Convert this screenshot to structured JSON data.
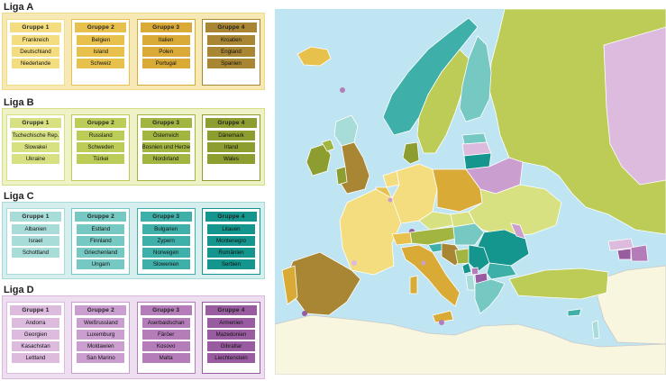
{
  "colors": {
    "A_light": "#f6e9b6",
    "A_border": "#efd98a",
    "A_g1": "#f4dd7e",
    "A_g2": "#e8c14d",
    "A_g3": "#d9aa36",
    "A_g4": "#a98633",
    "B_light": "#eef2c6",
    "B_border": "#d3df86",
    "B_g1": "#d7e181",
    "B_g2": "#bccc57",
    "B_g3": "#a3b541",
    "B_g4": "#8e9d2f",
    "C_light": "#d6eeed",
    "C_border": "#a8dad7",
    "C_g1": "#a8dcd8",
    "C_g2": "#76c8c2",
    "C_g3": "#3fb0a9",
    "C_g4": "#14958d",
    "D_light": "#eedff0",
    "D_border": "#d9b8dc",
    "D_g1": "#dcbbdf",
    "D_g2": "#cb9ed0",
    "D_g3": "#b47db9",
    "D_g4": "#9a5ca0",
    "sea": "#bfe4f2",
    "land_outside": "#f8f6df",
    "border_line": "#c9c9c9"
  },
  "ligen": [
    {
      "name": "Liga A",
      "gruppen": [
        {
          "title": "Gruppe 1",
          "teams": [
            "Frankreich",
            "Deutschland",
            "Niederlande"
          ]
        },
        {
          "title": "Gruppe 2",
          "teams": [
            "Belgien",
            "Island",
            "Schweiz"
          ]
        },
        {
          "title": "Gruppe 3",
          "teams": [
            "Italien",
            "Polen",
            "Portugal"
          ]
        },
        {
          "title": "Gruppe 4",
          "teams": [
            "Kroatien",
            "England",
            "Spanien"
          ]
        }
      ]
    },
    {
      "name": "Liga B",
      "gruppen": [
        {
          "title": "Gruppe 1",
          "teams": [
            "Tschechische Rep.",
            "Slowakei",
            "Ukraine"
          ]
        },
        {
          "title": "Gruppe 2",
          "teams": [
            "Russland",
            "Schweden",
            "Türkei"
          ]
        },
        {
          "title": "Gruppe 3",
          "teams": [
            "Österreich",
            "Bosnien und Herzeg.",
            "Nordirland"
          ]
        },
        {
          "title": "Gruppe 4",
          "teams": [
            "Dänemark",
            "Irland",
            "Wales"
          ]
        }
      ]
    },
    {
      "name": "Liga C",
      "gruppen": [
        {
          "title": "Gruppe 1",
          "teams": [
            "Albanien",
            "Israel",
            "Schottland"
          ]
        },
        {
          "title": "Gruppe 2",
          "teams": [
            "Estland",
            "Finnland",
            "Griechenland",
            "Ungarn"
          ]
        },
        {
          "title": "Gruppe 3",
          "teams": [
            "Bulgarien",
            "Zypern",
            "Norwegen",
            "Slowenien"
          ]
        },
        {
          "title": "Gruppe 4",
          "teams": [
            "Litauen",
            "Montenegro",
            "Rumänien",
            "Serbien"
          ]
        }
      ]
    },
    {
      "name": "Liga D",
      "gruppen": [
        {
          "title": "Gruppe 1",
          "teams": [
            "Andorra",
            "Georgien",
            "Kasachstan",
            "Lettland"
          ]
        },
        {
          "title": "Gruppe 2",
          "teams": [
            "Weißrussland",
            "Luxemburg",
            "Moldawien",
            "San Marino"
          ]
        },
        {
          "title": "Gruppe 3",
          "teams": [
            "Aserbaidschan",
            "Färöer",
            "Kosovo",
            "Malta"
          ]
        },
        {
          "title": "Gruppe 4",
          "teams": [
            "Armenien",
            "Mazedonien",
            "Gibraltar",
            "Liechtenstein"
          ]
        }
      ]
    }
  ]
}
